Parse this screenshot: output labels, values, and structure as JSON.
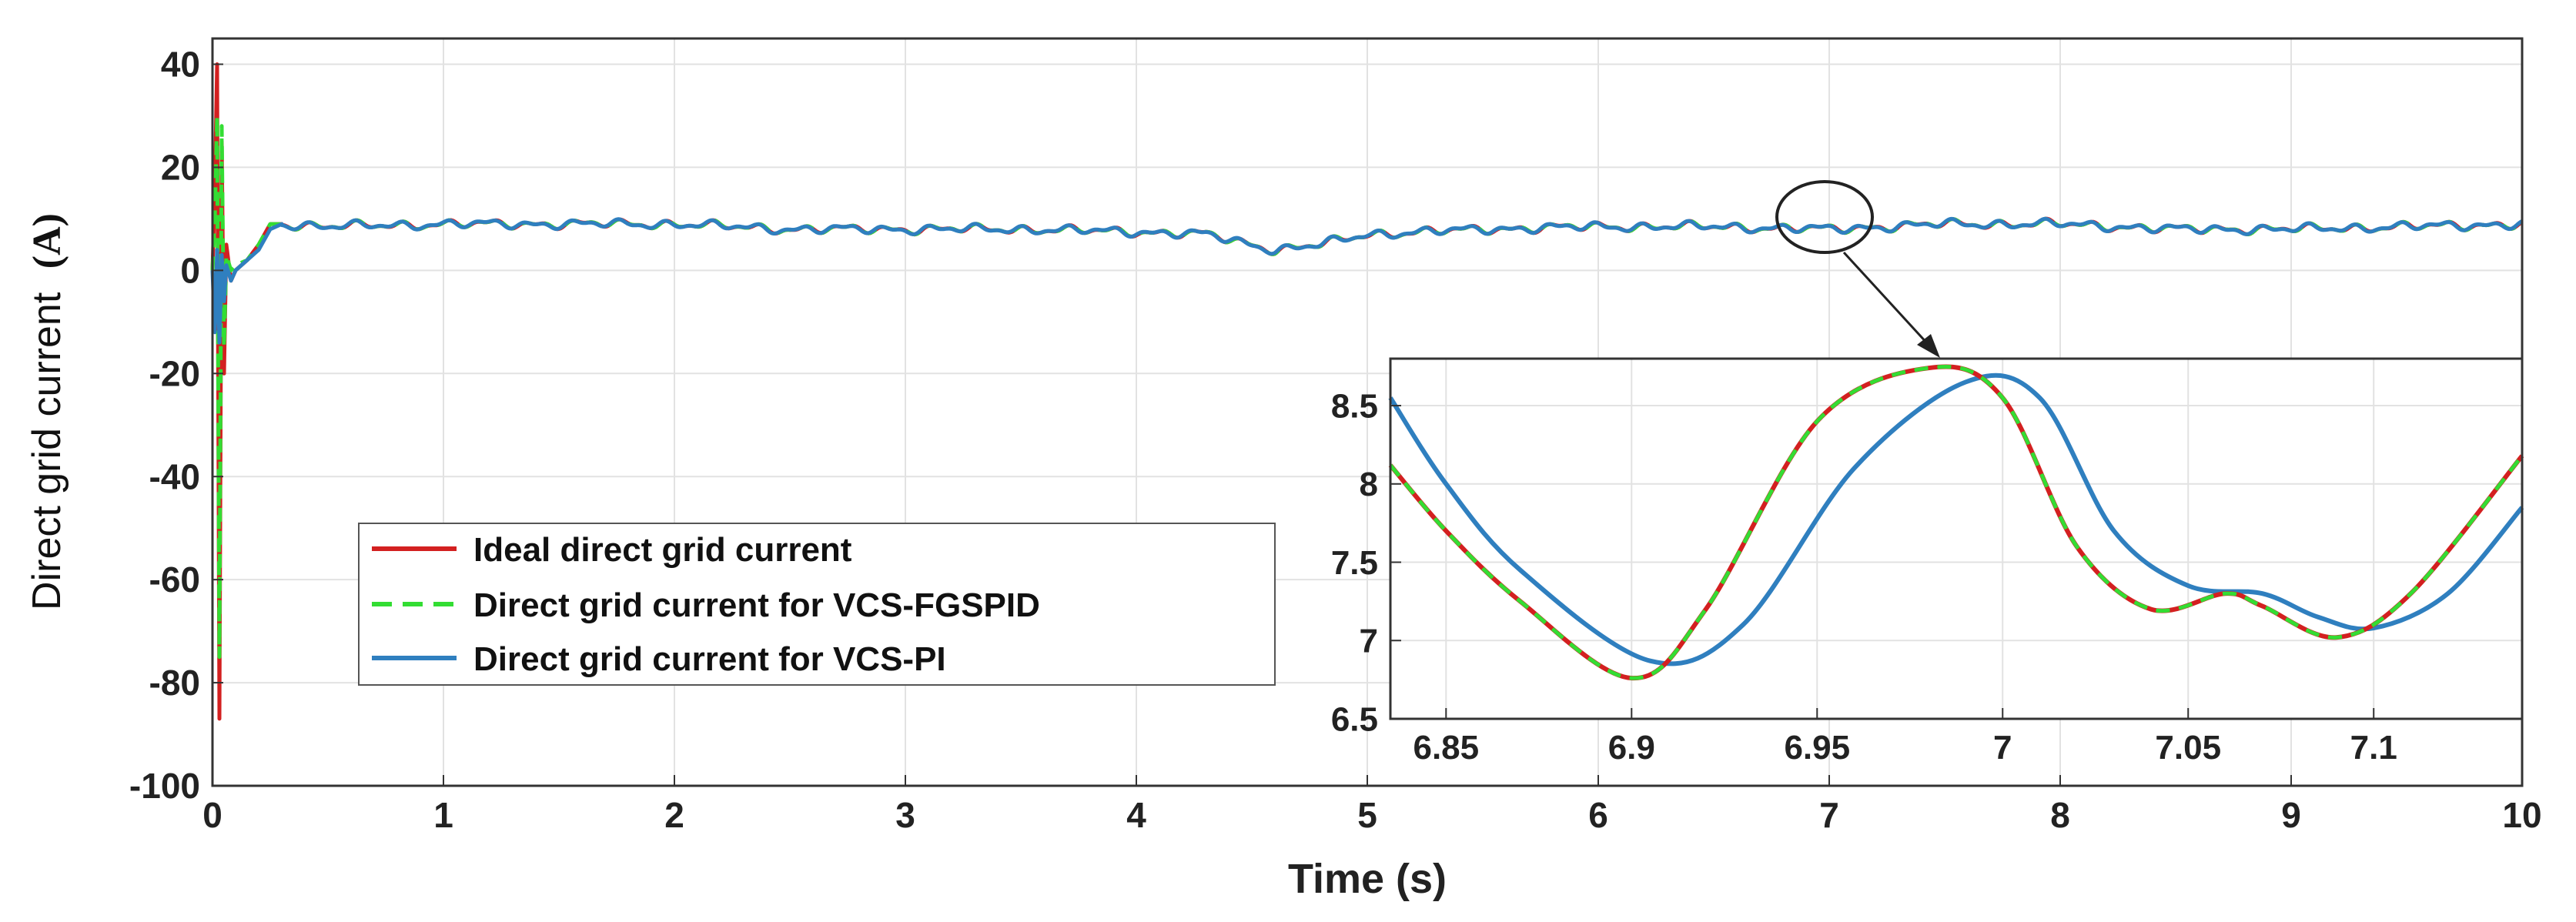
{
  "colors": {
    "ideal": "#d32020",
    "fgspid": "#33dd33",
    "pi": "#2f7fbf",
    "grid": "#e2e2e2",
    "axis": "#333333"
  },
  "chart_data": [
    {
      "id": "main",
      "type": "line",
      "title": "",
      "xlabel": "Time (s)",
      "ylabel_main": "Direct grid current",
      "ylabel_unit": "(A)",
      "xlim": [
        0,
        10
      ],
      "ylim": [
        -100,
        45
      ],
      "xticks": [
        0,
        1,
        2,
        3,
        4,
        5,
        6,
        7,
        8,
        9,
        10
      ],
      "xtick_labels": [
        "0",
        "1",
        "2",
        "3",
        "4",
        "5",
        "6",
        "7",
        "8",
        "9",
        "10"
      ],
      "yticks": [
        40,
        20,
        0,
        -20,
        -40,
        -60,
        -80,
        -100
      ],
      "ytick_labels": [
        "40",
        "20",
        "0",
        "-20",
        "-40",
        "-60",
        "-80",
        "-100"
      ],
      "grid": true,
      "legend": {
        "placement": "center-left",
        "entries": [
          {
            "key": "ideal",
            "label": "Ideal direct grid current",
            "style": "solid"
          },
          {
            "key": "fgspid",
            "label": "Direct grid current for VCS-FGSPID",
            "style": "dashed"
          },
          {
            "key": "pi",
            "label": "Direct grid current for VCS-PI",
            "style": "solid"
          }
        ]
      },
      "series": [
        {
          "key": "ideal",
          "name": "Ideal direct grid current",
          "x": [
            0,
            0.01,
            0.02,
            0.03,
            0.04,
            0.05,
            0.06,
            0.08,
            0.1,
            0.15,
            0.2,
            0.25,
            0.3
          ],
          "y": [
            0,
            15,
            40,
            -87,
            25,
            -20,
            5,
            -2,
            0,
            2,
            5,
            9,
            9
          ]
        },
        {
          "key": "fgspid",
          "name": "Direct grid current for VCS-FGSPID",
          "x": [
            0,
            0.01,
            0.02,
            0.03,
            0.04,
            0.05,
            0.06,
            0.08,
            0.1,
            0.15,
            0.2,
            0.25,
            0.3
          ],
          "y": [
            0,
            10,
            30,
            -75,
            28,
            -15,
            3,
            0,
            1,
            2,
            5,
            9,
            9
          ]
        },
        {
          "key": "pi",
          "name": "Direct grid current for VCS-PI",
          "x": [
            0,
            0.01,
            0.02,
            0.03,
            0.04,
            0.05,
            0.06,
            0.08,
            0.1,
            0.15,
            0.2,
            0.25,
            0.3
          ],
          "y": [
            0,
            -12,
            4,
            -14,
            3,
            -6,
            1,
            -2,
            0,
            2,
            4,
            8,
            9
          ]
        }
      ],
      "steady_state": {
        "x": [
          0.3,
          0.5,
          1.0,
          1.5,
          2.0,
          2.5,
          3.0,
          3.5,
          4.0,
          4.3,
          4.6,
          4.8,
          5.0,
          5.5,
          6.0,
          6.5,
          7.0,
          7.5,
          8.0,
          8.5,
          9.0,
          9.5,
          10.0
        ],
        "y": [
          9,
          8.5,
          9,
          9,
          9,
          8,
          8,
          8,
          7.5,
          7,
          4,
          5,
          7,
          8,
          8.5,
          8.5,
          8,
          9,
          9,
          8,
          8,
          8.5,
          9
        ],
        "ripple_amplitude": 1.2
      }
    },
    {
      "id": "inset",
      "type": "line",
      "title": "",
      "xlim": [
        6.835,
        7.14
      ],
      "ylim": [
        6.5,
        8.8
      ],
      "xticks": [
        6.85,
        6.9,
        6.95,
        7,
        7.05,
        7.1
      ],
      "xtick_labels": [
        "6.85",
        "6.9",
        "6.95",
        "7",
        "7.05",
        "7.1"
      ],
      "yticks": [
        8.5,
        8,
        7.5,
        7,
        6.5
      ],
      "ytick_labels": [
        "8.5",
        "8",
        "7.5",
        "7",
        "6.5"
      ],
      "grid": true,
      "series": [
        {
          "key": "ideal",
          "name": "Ideal direct grid current",
          "x": [
            6.835,
            6.85,
            6.87,
            6.9,
            6.92,
            6.95,
            6.98,
            7.0,
            7.02,
            7.04,
            7.06,
            7.07,
            7.09,
            7.11,
            7.14
          ],
          "y": [
            8.12,
            7.7,
            7.25,
            6.76,
            7.2,
            8.4,
            8.74,
            8.55,
            7.6,
            7.2,
            7.3,
            7.22,
            7.02,
            7.3,
            8.18
          ]
        },
        {
          "key": "fgspid",
          "name": "Direct grid current for VCS-FGSPID",
          "x": [
            6.835,
            6.85,
            6.87,
            6.9,
            6.92,
            6.95,
            6.98,
            7.0,
            7.02,
            7.04,
            7.06,
            7.07,
            7.09,
            7.11,
            7.14
          ],
          "y": [
            8.12,
            7.7,
            7.25,
            6.76,
            7.2,
            8.4,
            8.74,
            8.55,
            7.6,
            7.2,
            7.3,
            7.22,
            7.02,
            7.3,
            8.18
          ]
        },
        {
          "key": "pi",
          "name": "Direct grid current for VCS-PI",
          "x": [
            6.835,
            6.85,
            6.87,
            6.905,
            6.93,
            6.96,
            6.99,
            7.01,
            7.03,
            7.05,
            7.07,
            7.085,
            7.1,
            7.12,
            7.14
          ],
          "y": [
            8.55,
            8.0,
            7.45,
            6.87,
            7.1,
            8.1,
            8.65,
            8.55,
            7.7,
            7.35,
            7.3,
            7.15,
            7.08,
            7.3,
            7.85
          ]
        }
      ]
    }
  ]
}
